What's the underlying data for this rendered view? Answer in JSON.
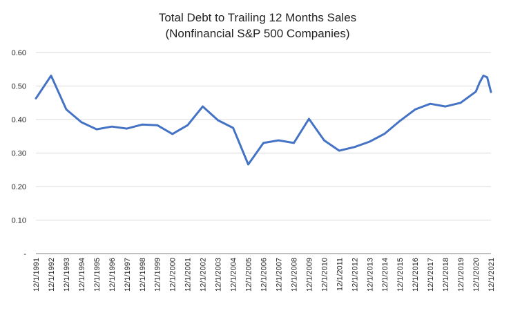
{
  "chart_data": {
    "type": "line",
    "title": "Total Debt to Trailing 12 Months Sales",
    "subtitle": "(Nonfinancial S&P 500 Companies)",
    "xlabel": "",
    "ylabel": "",
    "ylim": [
      0,
      0.6
    ],
    "y_ticks": [
      "-",
      "0.10",
      "0.20",
      "0.30",
      "0.40",
      "0.50",
      "0.60"
    ],
    "x_ticks": [
      "12/1/1991",
      "12/1/1992",
      "12/1/1993",
      "12/1/1994",
      "12/1/1995",
      "12/1/1996",
      "12/1/1997",
      "12/1/1998",
      "12/1/1999",
      "12/1/2000",
      "12/1/2001",
      "12/1/2002",
      "12/1/2003",
      "12/1/2004",
      "12/1/2005",
      "12/1/2006",
      "12/1/2007",
      "12/1/2008",
      "12/1/2009",
      "12/1/2010",
      "12/1/2011",
      "12/1/2012",
      "12/1/2013",
      "12/1/2014",
      "12/1/2015",
      "12/1/2016",
      "12/1/2017",
      "12/1/2018",
      "12/1/2019",
      "12/1/2020",
      "12/1/2021"
    ],
    "grid": true,
    "legend": "none",
    "color": "#4472c4",
    "x": [
      "1991-12-01",
      "1992-12-01",
      "1993-12-01",
      "1994-12-01",
      "1995-12-01",
      "1996-12-01",
      "1997-12-01",
      "1998-12-01",
      "1999-12-01",
      "2000-12-01",
      "2001-12-01",
      "2002-12-01",
      "2003-12-01",
      "2004-12-01",
      "2005-12-01",
      "2006-12-01",
      "2007-12-01",
      "2008-12-01",
      "2009-12-01",
      "2010-12-01",
      "2011-12-01",
      "2012-12-01",
      "2013-12-01",
      "2014-12-01",
      "2015-12-01",
      "2016-12-01",
      "2017-12-01",
      "2018-12-01",
      "2019-12-01",
      "2020-12-01",
      "2021-03-01",
      "2021-06-01",
      "2021-09-01",
      "2021-12-01"
    ],
    "values": [
      0.463,
      0.531,
      0.43,
      0.392,
      0.371,
      0.379,
      0.373,
      0.385,
      0.383,
      0.357,
      0.383,
      0.439,
      0.398,
      0.375,
      0.266,
      0.33,
      0.338,
      0.33,
      0.402,
      0.338,
      0.307,
      0.318,
      0.334,
      0.358,
      0.396,
      0.43,
      0.447,
      0.439,
      0.45,
      0.483,
      0.51,
      0.531,
      0.526,
      0.482
    ]
  }
}
